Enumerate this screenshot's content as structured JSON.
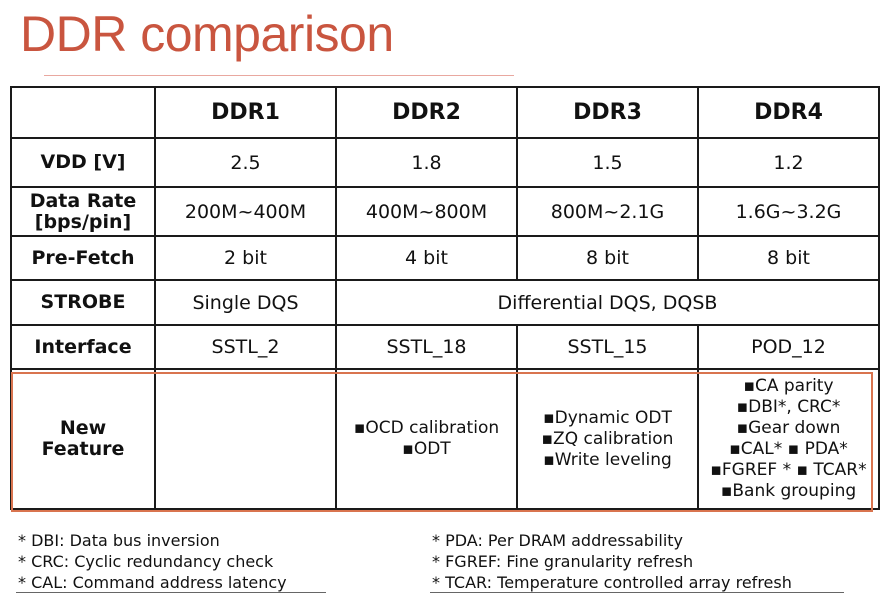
{
  "title": "DDR comparison",
  "table": {
    "columns": [
      "",
      "DDR1",
      "DDR2",
      "DDR3",
      "DDR4"
    ],
    "rows": {
      "vdd": {
        "label": "VDD [V]",
        "values": [
          "2.5",
          "1.8",
          "1.5",
          "1.2"
        ]
      },
      "data_rate": {
        "label_line1": "Data Rate",
        "label_line2": "[bps/pin]",
        "values": [
          "200M~400M",
          "400M~800M",
          "800M~2.1G",
          "1.6G~3.2G"
        ]
      },
      "prefetch": {
        "label": "Pre-Fetch",
        "values": [
          "2 bit",
          "4 bit",
          "8 bit",
          "8 bit"
        ]
      },
      "strobe": {
        "label": "STROBE",
        "ddr1": "Single DQS",
        "ddr2_4": "Differential DQS, DQSB"
      },
      "interface": {
        "label": "Interface",
        "values": [
          "SSTL_2",
          "SSTL_18",
          "SSTL_15",
          "POD_12"
        ]
      },
      "new_feature": {
        "label_line1": "New",
        "label_line2": "Feature",
        "ddr2": [
          "▪OCD calibration",
          "▪ODT"
        ],
        "ddr3": [
          "▪Dynamic ODT",
          "▪ZQ calibration",
          "▪Write leveling"
        ],
        "ddr4": [
          "▪CA parity",
          "▪DBI*, CRC*",
          "▪Gear down",
          "▪CAL*  ▪ PDA*",
          "▪FGREF * ▪ TCAR*",
          "▪Bank grouping"
        ]
      }
    }
  },
  "notes": {
    "left": [
      "* DBI: Data bus inversion",
      "* CRC: Cyclic redundancy check",
      "* CAL: Command address latency"
    ],
    "right": [
      "* PDA: Per DRAM addressability",
      "* FGREF: Fine granularity refresh",
      "* TCAR: Temperature controlled array refresh"
    ]
  },
  "colors": {
    "title": "#c9553f",
    "highlight_border": "#d9744f",
    "rule": "#e9a8a0"
  }
}
